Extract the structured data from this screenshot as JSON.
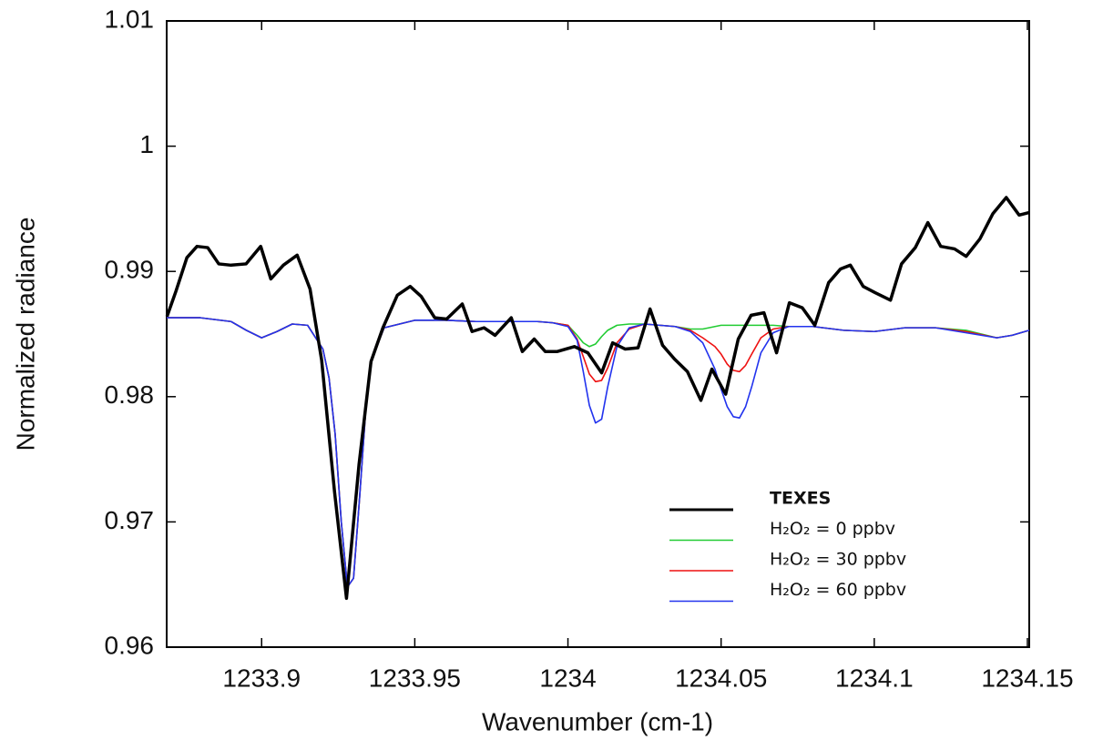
{
  "chart_data": {
    "type": "line",
    "xlabel": "Wavenumber (cm-1)",
    "ylabel": "Normalized radiance",
    "xlim": [
      1233.869,
      1234.1506
    ],
    "ylim": [
      0.96,
      1.01
    ],
    "xticks": [
      1233.9,
      1233.95,
      1234,
      1234.05,
      1234.1,
      1234.15
    ],
    "yticks": [
      0.96,
      0.97,
      0.98,
      0.99,
      1,
      1.01
    ],
    "legend": "lower right",
    "x": [
      1233.869,
      1233.88,
      1233.89,
      1233.895,
      1233.9,
      1233.905,
      1233.91,
      1233.915,
      1233.92,
      1233.922,
      1233.924,
      1233.926,
      1233.928,
      1233.93,
      1233.932,
      1233.934,
      1233.936,
      1233.94,
      1233.95,
      1233.96,
      1233.97,
      1233.98,
      1233.99,
      1233.995,
      1234.0,
      1234.003,
      1234.005,
      1234.007,
      1234.009,
      1234.011,
      1234.013,
      1234.016,
      1234.02,
      1234.025,
      1234.03,
      1234.035,
      1234.04,
      1234.044,
      1234.048,
      1234.05,
      1234.052,
      1234.054,
      1234.056,
      1234.058,
      1234.06,
      1234.063,
      1234.067,
      1234.072,
      1234.08,
      1234.09,
      1234.1,
      1234.11,
      1234.12,
      1234.13,
      1234.14,
      1234.145,
      1234.1506
    ],
    "series": [
      {
        "name": "TEXES",
        "color": "#000000",
        "x": [
          1233.8691,
          1233.872,
          1233.8756,
          1233.8789,
          1233.8824,
          1233.886,
          1233.8899,
          1233.8949,
          1233.8997,
          1233.903,
          1233.9071,
          1233.9116,
          1233.9158,
          1233.9196,
          1233.9238,
          1233.9277,
          1233.9318,
          1233.9357,
          1233.9396,
          1233.9443,
          1233.9485,
          1233.9521,
          1233.9565,
          1233.9604,
          1233.9655,
          1233.9687,
          1233.9726,
          1233.9762,
          1233.9815,
          1233.9851,
          1233.989,
          1233.9926,
          1233.9964,
          1234.0021,
          1234.0065,
          1234.011,
          1234.0146,
          1234.0187,
          1234.0229,
          1234.0268,
          1234.0309,
          1234.0348,
          1234.039,
          1234.0434,
          1234.047,
          1234.0515,
          1234.0556,
          1234.0598,
          1234.064,
          1234.0681,
          1234.0723,
          1234.0765,
          1234.0806,
          1234.0851,
          1234.089,
          1234.0922,
          1234.0964,
          1234.1003,
          1234.1053,
          1234.1089,
          1234.1134,
          1234.1175,
          1234.1217,
          1234.1262,
          1234.13,
          1234.1345,
          1234.1387,
          1234.1431,
          1234.1473,
          1234.1505
        ],
        "values": [
          0.9864,
          0.9884,
          0.9911,
          0.992,
          0.9919,
          0.9906,
          0.9905,
          0.9906,
          0.992,
          0.9894,
          0.9905,
          0.9913,
          0.9886,
          0.9829,
          0.9724,
          0.9639,
          0.9746,
          0.9828,
          0.9855,
          0.9881,
          0.9888,
          0.988,
          0.9863,
          0.9862,
          0.9874,
          0.9852,
          0.9855,
          0.9849,
          0.9863,
          0.9836,
          0.9846,
          0.9836,
          0.9836,
          0.984,
          0.9835,
          0.9819,
          0.9843,
          0.9838,
          0.9839,
          0.987,
          0.9841,
          0.983,
          0.982,
          0.9797,
          0.9822,
          0.9802,
          0.9846,
          0.9865,
          0.9867,
          0.9835,
          0.9875,
          0.9871,
          0.9857,
          0.9891,
          0.9902,
          0.9905,
          0.9888,
          0.9883,
          0.9877,
          0.9906,
          0.9919,
          0.9939,
          0.992,
          0.9918,
          0.9912,
          0.9926,
          0.9946,
          0.9959,
          0.9945,
          0.9947
        ]
      },
      {
        "name": "H₂O₂ = 0 ppbv",
        "color": "#22cc33",
        "values": [
          0.9863,
          0.9863,
          0.986,
          0.9853,
          0.9847,
          0.9852,
          0.9858,
          0.9857,
          0.9838,
          0.9815,
          0.977,
          0.97,
          0.9648,
          0.9655,
          0.972,
          0.979,
          0.983,
          0.9855,
          0.9861,
          0.9861,
          0.986,
          0.986,
          0.986,
          0.9859,
          0.9857,
          0.9849,
          0.9843,
          0.984,
          0.9842,
          0.9848,
          0.9853,
          0.9857,
          0.9858,
          0.9858,
          0.9857,
          0.9856,
          0.9854,
          0.9854,
          0.9856,
          0.9857,
          0.9857,
          0.9857,
          0.9857,
          0.9857,
          0.9857,
          0.9857,
          0.9857,
          0.9856,
          0.9856,
          0.9853,
          0.9852,
          0.9855,
          0.9855,
          0.9853,
          0.9847,
          0.9849,
          0.9853
        ]
      },
      {
        "name": "H₂O₂ = 30 ppbv",
        "color": "#ee1111",
        "values": [
          0.9863,
          0.9863,
          0.986,
          0.9853,
          0.9847,
          0.9852,
          0.9858,
          0.9857,
          0.9838,
          0.9815,
          0.977,
          0.97,
          0.9648,
          0.9655,
          0.972,
          0.979,
          0.983,
          0.9855,
          0.9861,
          0.9861,
          0.986,
          0.986,
          0.986,
          0.9859,
          0.9857,
          0.9846,
          0.9832,
          0.9818,
          0.9812,
          0.9813,
          0.9823,
          0.9843,
          0.9854,
          0.9858,
          0.9857,
          0.9856,
          0.9853,
          0.9847,
          0.984,
          0.9834,
          0.9826,
          0.9821,
          0.982,
          0.9825,
          0.9834,
          0.9847,
          0.9854,
          0.9856,
          0.9856,
          0.9853,
          0.9852,
          0.9855,
          0.9855,
          0.9852,
          0.9847,
          0.9849,
          0.9853
        ]
      },
      {
        "name": "H₂O₂ = 60 ppbv",
        "color": "#2233ee",
        "values": [
          0.9863,
          0.9863,
          0.986,
          0.9853,
          0.9847,
          0.9852,
          0.9858,
          0.9857,
          0.9838,
          0.9815,
          0.977,
          0.97,
          0.9648,
          0.9655,
          0.972,
          0.979,
          0.983,
          0.9855,
          0.9861,
          0.9861,
          0.986,
          0.986,
          0.986,
          0.9859,
          0.9856,
          0.9845,
          0.982,
          0.9793,
          0.9779,
          0.9782,
          0.9808,
          0.984,
          0.9855,
          0.9858,
          0.9857,
          0.9856,
          0.9852,
          0.9843,
          0.9822,
          0.9806,
          0.9792,
          0.9784,
          0.9783,
          0.9792,
          0.9808,
          0.9835,
          0.9851,
          0.9856,
          0.9856,
          0.9853,
          0.9852,
          0.9855,
          0.9855,
          0.9851,
          0.9847,
          0.9849,
          0.9853
        ]
      }
    ]
  }
}
